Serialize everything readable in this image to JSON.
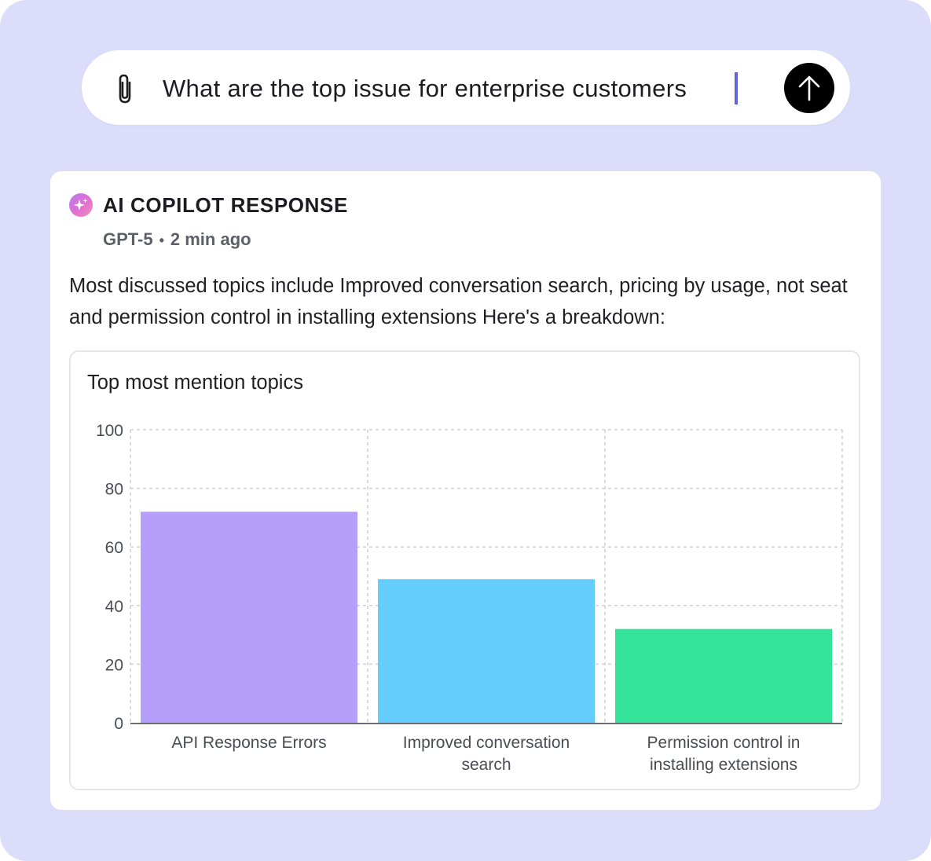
{
  "prompt": {
    "text": "What are the top issue for enterprise customers",
    "send_label": "Send"
  },
  "response": {
    "title": "AI COPILOT RESPONSE",
    "model": "GPT-5",
    "separator": "•",
    "time": "2 min ago",
    "body": "Most discussed topics include Improved conversation search, pricing by usage, not seat and permission control in installing extensions Here's a breakdown:"
  },
  "colors": {
    "background": "#dcdcfb",
    "caret": "#6263d6",
    "bar_1": "#b69ffb",
    "bar_2": "#64cdfc",
    "bar_3": "#33e39a"
  },
  "icons": {
    "attach": "paperclip-icon",
    "send": "arrow-up-icon",
    "ai": "sparkle-icon"
  },
  "chart_data": {
    "type": "bar",
    "title": "Top most mention topics",
    "categories": [
      [
        "API Response Errors"
      ],
      [
        "Improved conversation",
        "search"
      ],
      [
        "Permission control in",
        "installing extensions"
      ]
    ],
    "values": [
      72,
      49,
      32
    ],
    "bar_colors": [
      "#b69ffb",
      "#64cdfc",
      "#33e39a"
    ],
    "ylim": [
      0,
      100
    ],
    "yticks": [
      0,
      20,
      40,
      60,
      80,
      100
    ],
    "xlabel": "",
    "ylabel": "",
    "grid": true,
    "legend": "none"
  }
}
